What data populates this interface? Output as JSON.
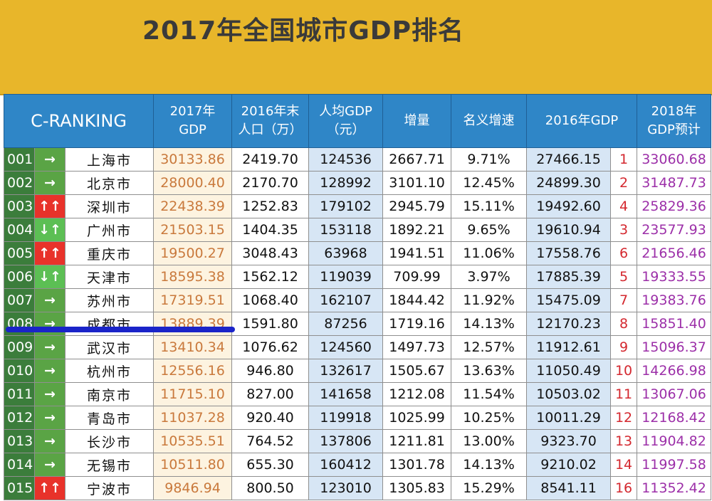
{
  "title": "2017年全国城市GDP排名",
  "columns": [
    {
      "key": "rank",
      "label": "C-RANKING"
    },
    {
      "key": "gdp2017",
      "label": "2017年\nGDP"
    },
    {
      "key": "pop2016",
      "label": "2016年末\n人口（万）"
    },
    {
      "key": "percap",
      "label": "人均GDP\n（元）"
    },
    {
      "key": "increase",
      "label": "增量"
    },
    {
      "key": "growth",
      "label": "名义增速"
    },
    {
      "key": "gdp2016",
      "label": "2016年GDP"
    },
    {
      "key": "gdp2018",
      "label": "2018年\nGDP预计"
    }
  ],
  "trend_arrows": {
    "same": "→",
    "up": "↑↑",
    "down": "↓↑"
  },
  "colors": {
    "banner": "#e8b62a",
    "header": "#2f86c7",
    "rank_bg": "#3b7d3b",
    "trend_up": "#e8322a",
    "trend_down": "#5cbf54",
    "gdp2017_text": "#c9793c",
    "rank16_text": "#d4282f",
    "gdp2018_text": "#9c2fa8"
  },
  "rows": [
    {
      "rank": "001",
      "trend": "same",
      "city": "上海市",
      "gdp2017": "30133.86",
      "pop2016": "2419.70",
      "percap": "124536",
      "increase": "2667.71",
      "growth": "9.71%",
      "gdp2016": "27466.15",
      "rank2016": "1",
      "gdp2018": "33060.68"
    },
    {
      "rank": "002",
      "trend": "same",
      "city": "北京市",
      "gdp2017": "28000.40",
      "pop2016": "2170.70",
      "percap": "128992",
      "increase": "3101.10",
      "growth": "12.45%",
      "gdp2016": "24899.30",
      "rank2016": "2",
      "gdp2018": "31487.73"
    },
    {
      "rank": "003",
      "trend": "up",
      "city": "深圳市",
      "gdp2017": "22438.39",
      "pop2016": "1252.83",
      "percap": "179102",
      "increase": "2945.79",
      "growth": "15.11%",
      "gdp2016": "19492.60",
      "rank2016": "4",
      "gdp2018": "25829.36"
    },
    {
      "rank": "004",
      "trend": "down",
      "city": "广州市",
      "gdp2017": "21503.15",
      "pop2016": "1404.35",
      "percap": "153118",
      "increase": "1892.21",
      "growth": "9.65%",
      "gdp2016": "19610.94",
      "rank2016": "3",
      "gdp2018": "23577.93"
    },
    {
      "rank": "005",
      "trend": "up",
      "city": "重庆市",
      "gdp2017": "19500.27",
      "pop2016": "3048.43",
      "percap": "63968",
      "increase": "1941.51",
      "growth": "11.06%",
      "gdp2016": "17558.76",
      "rank2016": "6",
      "gdp2018": "21656.46"
    },
    {
      "rank": "006",
      "trend": "down",
      "city": "天津市",
      "gdp2017": "18595.38",
      "pop2016": "1562.12",
      "percap": "119039",
      "increase": "709.99",
      "growth": "3.97%",
      "gdp2016": "17885.39",
      "rank2016": "5",
      "gdp2018": "19333.55"
    },
    {
      "rank": "007",
      "trend": "same",
      "city": "苏州市",
      "gdp2017": "17319.51",
      "pop2016": "1068.40",
      "percap": "162107",
      "increase": "1844.42",
      "growth": "11.92%",
      "gdp2016": "15475.09",
      "rank2016": "7",
      "gdp2018": "19383.76"
    },
    {
      "rank": "008",
      "trend": "same",
      "city": "成都市",
      "gdp2017": "13889.39",
      "pop2016": "1591.80",
      "percap": "87256",
      "increase": "1719.16",
      "growth": "14.13%",
      "gdp2016": "12170.23",
      "rank2016": "8",
      "gdp2018": "15851.40"
    },
    {
      "rank": "009",
      "trend": "same",
      "city": "武汉市",
      "gdp2017": "13410.34",
      "pop2016": "1076.62",
      "percap": "124560",
      "increase": "1497.73",
      "growth": "12.57%",
      "gdp2016": "11912.61",
      "rank2016": "9",
      "gdp2018": "15096.37"
    },
    {
      "rank": "010",
      "trend": "same",
      "city": "杭州市",
      "gdp2017": "12556.16",
      "pop2016": "946.80",
      "percap": "132617",
      "increase": "1505.67",
      "growth": "13.63%",
      "gdp2016": "11050.49",
      "rank2016": "10",
      "gdp2018": "14266.98"
    },
    {
      "rank": "011",
      "trend": "same",
      "city": "南京市",
      "gdp2017": "11715.10",
      "pop2016": "827.00",
      "percap": "141658",
      "increase": "1212.08",
      "growth": "11.54%",
      "gdp2016": "10503.02",
      "rank2016": "11",
      "gdp2018": "13067.06"
    },
    {
      "rank": "012",
      "trend": "same",
      "city": "青岛市",
      "gdp2017": "11037.28",
      "pop2016": "920.40",
      "percap": "119918",
      "increase": "1025.99",
      "growth": "10.25%",
      "gdp2016": "10011.29",
      "rank2016": "12",
      "gdp2018": "12168.42"
    },
    {
      "rank": "013",
      "trend": "same",
      "city": "长沙市",
      "gdp2017": "10535.51",
      "pop2016": "764.52",
      "percap": "137806",
      "increase": "1211.81",
      "growth": "13.00%",
      "gdp2016": "9323.70",
      "rank2016": "13",
      "gdp2018": "11904.82"
    },
    {
      "rank": "014",
      "trend": "same",
      "city": "无锡市",
      "gdp2017": "10511.80",
      "pop2016": "655.30",
      "percap": "160412",
      "increase": "1301.78",
      "growth": "14.13%",
      "gdp2016": "9210.02",
      "rank2016": "14",
      "gdp2018": "11997.58"
    },
    {
      "rank": "015",
      "trend": "up",
      "city": "宁波市",
      "gdp2017": "9846.94",
      "pop2016": "800.50",
      "percap": "123010",
      "increase": "1305.83",
      "growth": "15.29%",
      "gdp2016": "8541.11",
      "rank2016": "16",
      "gdp2018": "11352.42"
    }
  ]
}
